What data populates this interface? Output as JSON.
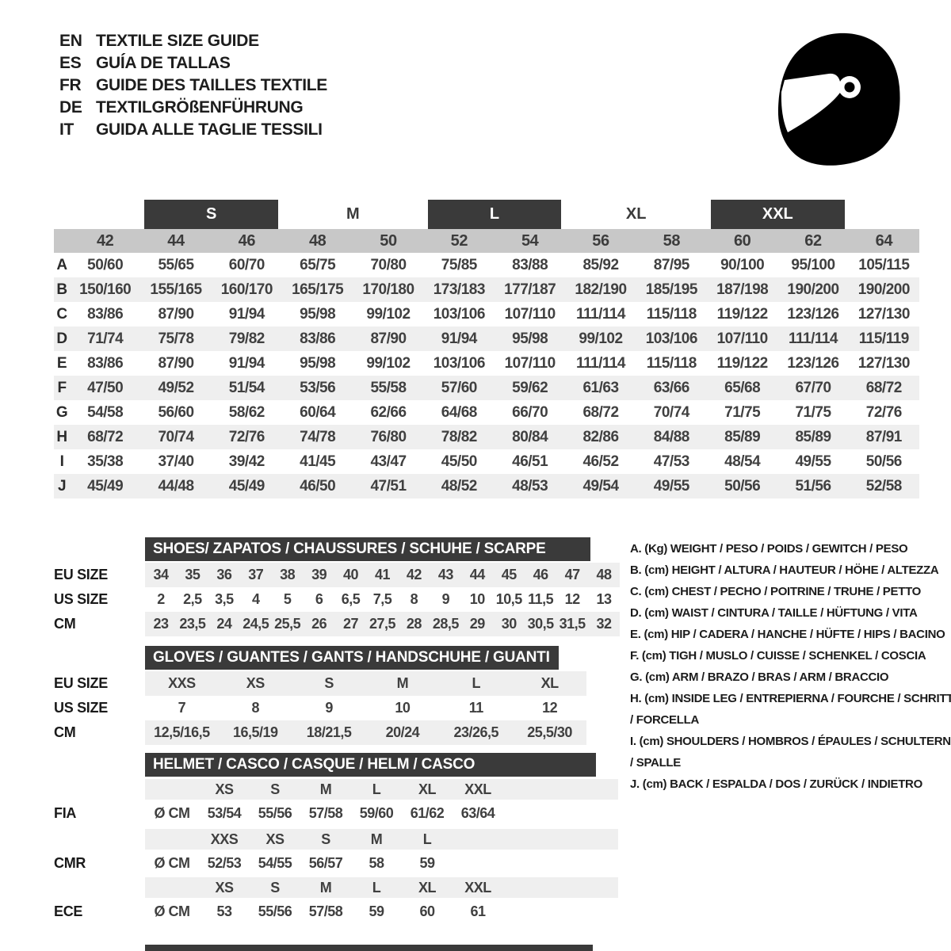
{
  "header": {
    "languages": [
      {
        "code": "EN",
        "title": "TEXTILE SIZE GUIDE"
      },
      {
        "code": "ES",
        "title": "GUÍA DE TALLAS"
      },
      {
        "code": "FR",
        "title": "GUIDE DES TAILLES TEXTILE"
      },
      {
        "code": "DE",
        "title": "TEXTILGRÖßENFÜHRUNG"
      },
      {
        "code": "IT",
        "title": "GUIDA ALLE TAGLIE TESSILI"
      }
    ],
    "helmet_icon": "racing-helmet-icon"
  },
  "colors": {
    "dark_bar": "#3a3a3a",
    "columns_row": "#c8c8c8",
    "stripe": "#efefef"
  },
  "size_table": {
    "groups": [
      {
        "label": "S",
        "boxed": true
      },
      {
        "label": "M",
        "boxed": false
      },
      {
        "label": "L",
        "boxed": true
      },
      {
        "label": "XL",
        "boxed": false
      },
      {
        "label": "XXL",
        "boxed": true
      }
    ],
    "columns": [
      "42",
      "44",
      "46",
      "48",
      "50",
      "52",
      "54",
      "56",
      "58",
      "60",
      "62",
      "64"
    ],
    "rows": [
      {
        "id": "A",
        "values": [
          "50/60",
          "55/65",
          "60/70",
          "65/75",
          "70/80",
          "75/85",
          "83/88",
          "85/92",
          "87/95",
          "90/100",
          "95/100",
          "105/115"
        ]
      },
      {
        "id": "B",
        "values": [
          "150/160",
          "155/165",
          "160/170",
          "165/175",
          "170/180",
          "173/183",
          "177/187",
          "182/190",
          "185/195",
          "187/198",
          "190/200",
          "190/200"
        ]
      },
      {
        "id": "C",
        "values": [
          "83/86",
          "87/90",
          "91/94",
          "95/98",
          "99/102",
          "103/106",
          "107/110",
          "111/114",
          "115/118",
          "119/122",
          "123/126",
          "127/130"
        ]
      },
      {
        "id": "D",
        "values": [
          "71/74",
          "75/78",
          "79/82",
          "83/86",
          "87/90",
          "91/94",
          "95/98",
          "99/102",
          "103/106",
          "107/110",
          "111/114",
          "115/119"
        ]
      },
      {
        "id": "E",
        "values": [
          "83/86",
          "87/90",
          "91/94",
          "95/98",
          "99/102",
          "103/106",
          "107/110",
          "111/114",
          "115/118",
          "119/122",
          "123/126",
          "127/130"
        ]
      },
      {
        "id": "F",
        "values": [
          "47/50",
          "49/52",
          "51/54",
          "53/56",
          "55/58",
          "57/60",
          "59/62",
          "61/63",
          "63/66",
          "65/68",
          "67/70",
          "68/72"
        ]
      },
      {
        "id": "G",
        "values": [
          "54/58",
          "56/60",
          "58/62",
          "60/64",
          "62/66",
          "64/68",
          "66/70",
          "68/72",
          "70/74",
          "71/75",
          "71/75",
          "72/76"
        ]
      },
      {
        "id": "H",
        "values": [
          "68/72",
          "70/74",
          "72/76",
          "74/78",
          "76/80",
          "78/82",
          "80/84",
          "82/86",
          "84/88",
          "85/89",
          "85/89",
          "87/91"
        ]
      },
      {
        "id": "I",
        "values": [
          "35/38",
          "37/40",
          "39/42",
          "41/45",
          "43/47",
          "45/50",
          "46/51",
          "46/52",
          "47/53",
          "48/54",
          "49/55",
          "50/56"
        ]
      },
      {
        "id": "J",
        "values": [
          "45/49",
          "44/48",
          "45/49",
          "46/50",
          "47/51",
          "48/52",
          "48/53",
          "49/54",
          "49/55",
          "50/56",
          "51/56",
          "52/58"
        ]
      }
    ]
  },
  "shoes": {
    "title": "SHOES/ ZAPATOS / CHAUSSURES / SCHUHE / SCARPE",
    "rows": [
      {
        "label": "EU SIZE",
        "shaded": true,
        "values": [
          "34",
          "35",
          "36",
          "37",
          "38",
          "39",
          "40",
          "41",
          "42",
          "43",
          "44",
          "45",
          "46",
          "47",
          "48"
        ]
      },
      {
        "label": "US SIZE",
        "shaded": false,
        "values": [
          "2",
          "2,5",
          "3,5",
          "4",
          "5",
          "6",
          "6,5",
          "7,5",
          "8",
          "9",
          "10",
          "10,5",
          "11,5",
          "12",
          "13"
        ]
      },
      {
        "label": "CM",
        "shaded": true,
        "values": [
          "23",
          "23,5",
          "24",
          "24,5",
          "25,5",
          "26",
          "27",
          "27,5",
          "28",
          "28,5",
          "29",
          "30",
          "30,5",
          "31,5",
          "32"
        ]
      }
    ]
  },
  "gloves": {
    "title": "GLOVES / GUANTES / GANTS / HANDSCHUHE / GUANTI",
    "rows": [
      {
        "label": "EU SIZE",
        "shaded": true,
        "values": [
          "XXS",
          "XS",
          "S",
          "M",
          "L",
          "XL"
        ]
      },
      {
        "label": "US SIZE",
        "shaded": false,
        "values": [
          "7",
          "8",
          "9",
          "10",
          "11",
          "12"
        ]
      },
      {
        "label": "CM",
        "shaded": true,
        "values": [
          "12,5/16,5",
          "16,5/19",
          "18/21,5",
          "20/24",
          "23/26,5",
          "25,5/30"
        ]
      }
    ]
  },
  "helmets": {
    "title": "HELMET / CASCO / CASQUE / HELM / CASCO",
    "standards": [
      {
        "label": "FIA",
        "unit": "Ø CM",
        "sizes": [
          "XS",
          "S",
          "M",
          "L",
          "XL",
          "XXL"
        ],
        "values": [
          "53/54",
          "55/56",
          "57/58",
          "59/60",
          "61/62",
          "63/64"
        ]
      },
      {
        "label": "CMR",
        "unit": "Ø CM",
        "sizes": [
          "XXS",
          "XS",
          "S",
          "M",
          "L",
          ""
        ],
        "values": [
          "52/53",
          "54/55",
          "56/57",
          "58",
          "59",
          ""
        ]
      },
      {
        "label": "ECE",
        "unit": "Ø CM",
        "sizes": [
          "XS",
          "S",
          "M",
          "L",
          "XL",
          "XXL"
        ],
        "values": [
          "53",
          "55/56",
          "57/58",
          "59",
          "60",
          "61"
        ]
      }
    ]
  },
  "legend": {
    "items": [
      "A. (Kg) WEIGHT / PESO / POIDS / GEWITCH / PESO",
      "B. (cm) HEIGHT / ALTURA / HAUTEUR / HÖHE / ALTEZZA",
      "C. (cm) CHEST / PECHO / POITRINE / TRUHE / PETTO",
      "D. (cm) WAIST / CINTURA / TAILLE / HÜFTUNG / VITA",
      "E. (cm) HIP / CADERA / HANCHE / HÜFTE / HIPS / BACINO",
      "F. (cm) TIGH / MUSLO / CUISSE / SCHENKEL / COSCIA",
      "G. (cm) ARM / BRAZO / BRAS / ARM / BRACCIO",
      "H. (cm) INSIDE LEG / ENTREPIERNA / FOURCHE / SCHRITT / FORCELLA",
      "I. (cm) SHOULDERS / HOMBROS / ÉPAULES / SCHULTERN / SPALLE",
      "J. (cm) BACK / ESPALDA / DOS / ZURÜCK / INDIETRO"
    ]
  }
}
